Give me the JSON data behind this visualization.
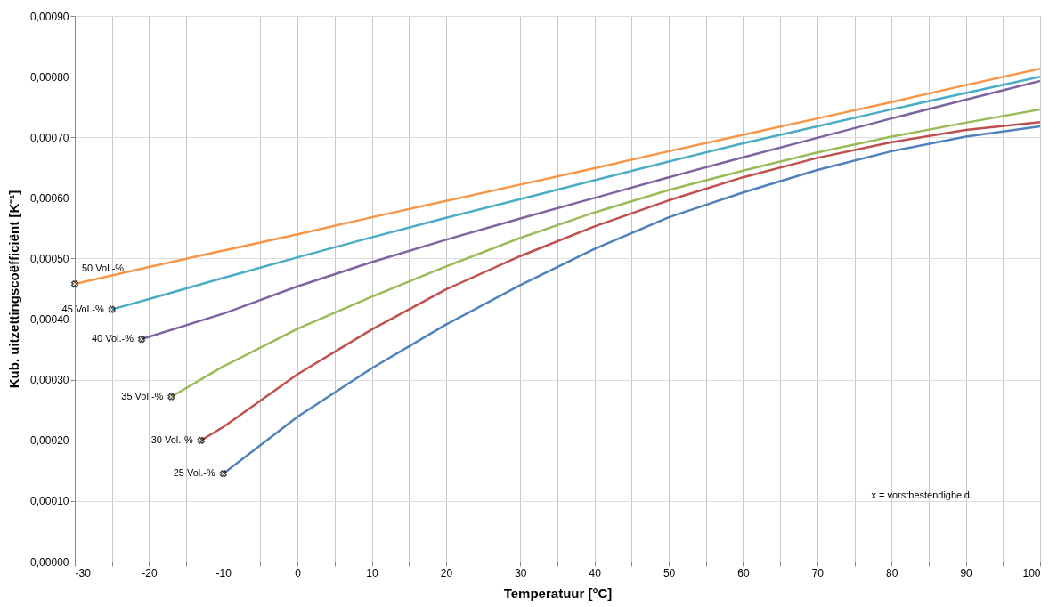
{
  "chart_data": {
    "type": "line",
    "xlabel": "Temperatuur [°C]",
    "ylabel": "Kub. uitzettingscoëfficiënt [K⁻¹]",
    "xlim": [
      -30,
      100
    ],
    "ylim": [
      0,
      0.0009
    ],
    "xticks": [
      -30,
      {
        "value": -25,
        "label": null
      },
      -20,
      {
        "value": -15,
        "label": null
      },
      -10,
      {
        "value": -5,
        "label": null
      },
      0,
      {
        "value": 5,
        "label": null
      },
      10,
      {
        "value": 15,
        "label": null
      },
      20,
      {
        "value": 25,
        "label": null
      },
      30,
      {
        "value": 35,
        "label": null
      },
      40,
      {
        "value": 45,
        "label": null
      },
      50,
      {
        "value": 55,
        "label": null
      },
      60,
      {
        "value": 65,
        "label": null
      },
      70,
      {
        "value": 75,
        "label": null
      },
      80,
      {
        "value": 85,
        "label": null
      },
      90,
      {
        "value": 95,
        "label": null
      },
      100
    ],
    "yticks": [
      {
        "value": 0,
        "label": "0,00000"
      },
      {
        "value": 0.0001,
        "label": "0,00010"
      },
      {
        "value": 0.0002,
        "label": "0,00020"
      },
      {
        "value": 0.0003,
        "label": "0,00030"
      },
      {
        "value": 0.0004,
        "label": "0,00040"
      },
      {
        "value": 0.0005,
        "label": "0,00050"
      },
      {
        "value": 0.0006,
        "label": "0,00060"
      },
      {
        "value": 0.0007,
        "label": "0,00070"
      },
      {
        "value": 0.0008,
        "label": "0,00080"
      },
      {
        "value": 0.0009,
        "label": "0,00090"
      }
    ],
    "grid": true,
    "line_style": "solid",
    "marker": "none",
    "series": [
      {
        "name": "50 Vol.-%",
        "color": "#f79646",
        "x": [
          -30,
          -20,
          -10,
          0,
          10,
          20,
          30,
          40,
          50,
          60,
          70,
          80,
          90,
          100
        ],
        "values": [
          0.000458,
          0.000486,
          0.000513,
          0.00054,
          0.000568,
          0.000595,
          0.000622,
          0.000649,
          0.000677,
          0.000704,
          0.000731,
          0.000758,
          0.000786,
          0.000813
        ]
      },
      {
        "name": "45 Vol.-%",
        "color": "#4bacc6",
        "x": [
          -25,
          -20,
          -10,
          0,
          10,
          20,
          30,
          40,
          50,
          60,
          70,
          80,
          90,
          100
        ],
        "values": [
          0.000416,
          0.000433,
          0.000468,
          0.000502,
          0.000535,
          0.000567,
          0.000598,
          0.000629,
          0.00066,
          0.00069,
          0.000718,
          0.000746,
          0.000773,
          0.0008
        ]
      },
      {
        "name": "40 Vol.-%",
        "color": "#8064a2",
        "x": [
          -21,
          -10,
          0,
          10,
          20,
          30,
          40,
          50,
          60,
          70,
          80,
          90,
          100
        ],
        "values": [
          0.000367,
          0.000409,
          0.000454,
          0.000494,
          0.000531,
          0.000566,
          0.0006,
          0.000634,
          0.000667,
          0.000699,
          0.000731,
          0.000762,
          0.000793
        ]
      },
      {
        "name": "35 Vol.-%",
        "color": "#9bbb59",
        "x": [
          -17,
          -10,
          0,
          10,
          20,
          30,
          40,
          50,
          60,
          70,
          80,
          90,
          100
        ],
        "values": [
          0.000272,
          0.000322,
          0.000384,
          0.000437,
          0.000487,
          0.000534,
          0.000576,
          0.000613,
          0.000645,
          0.000675,
          0.000701,
          0.000724,
          0.000746
        ]
      },
      {
        "name": "30 Vol.-%",
        "color": "#c0504d",
        "x": [
          -13,
          -10,
          0,
          10,
          20,
          30,
          40,
          50,
          60,
          70,
          80,
          90,
          100
        ],
        "values": [
          0.0002,
          0.000222,
          0.000309,
          0.000383,
          0.000449,
          0.000504,
          0.000553,
          0.000596,
          0.000634,
          0.000666,
          0.000692,
          0.000712,
          0.000725
        ]
      },
      {
        "name": "25 Vol.-%",
        "color": "#4f81bd",
        "x": [
          -10,
          0,
          10,
          20,
          30,
          40,
          50,
          60,
          70,
          80,
          90,
          100
        ],
        "values": [
          0.000145,
          0.000239,
          0.000319,
          0.000391,
          0.000456,
          0.000516,
          0.000568,
          0.000609,
          0.000646,
          0.000677,
          0.000701,
          0.000718
        ]
      },
      {
        "type": "scatter",
        "marker": "cross",
        "color": "#000000",
        "x": [
          -30,
          -25,
          -21,
          -17,
          -13,
          -10
        ],
        "values": [
          0.000458,
          0.000416,
          0.000367,
          0.000272,
          0.0002,
          0.000145
        ]
      }
    ],
    "annotations": [
      "x = vorstbestendigheid"
    ]
  }
}
